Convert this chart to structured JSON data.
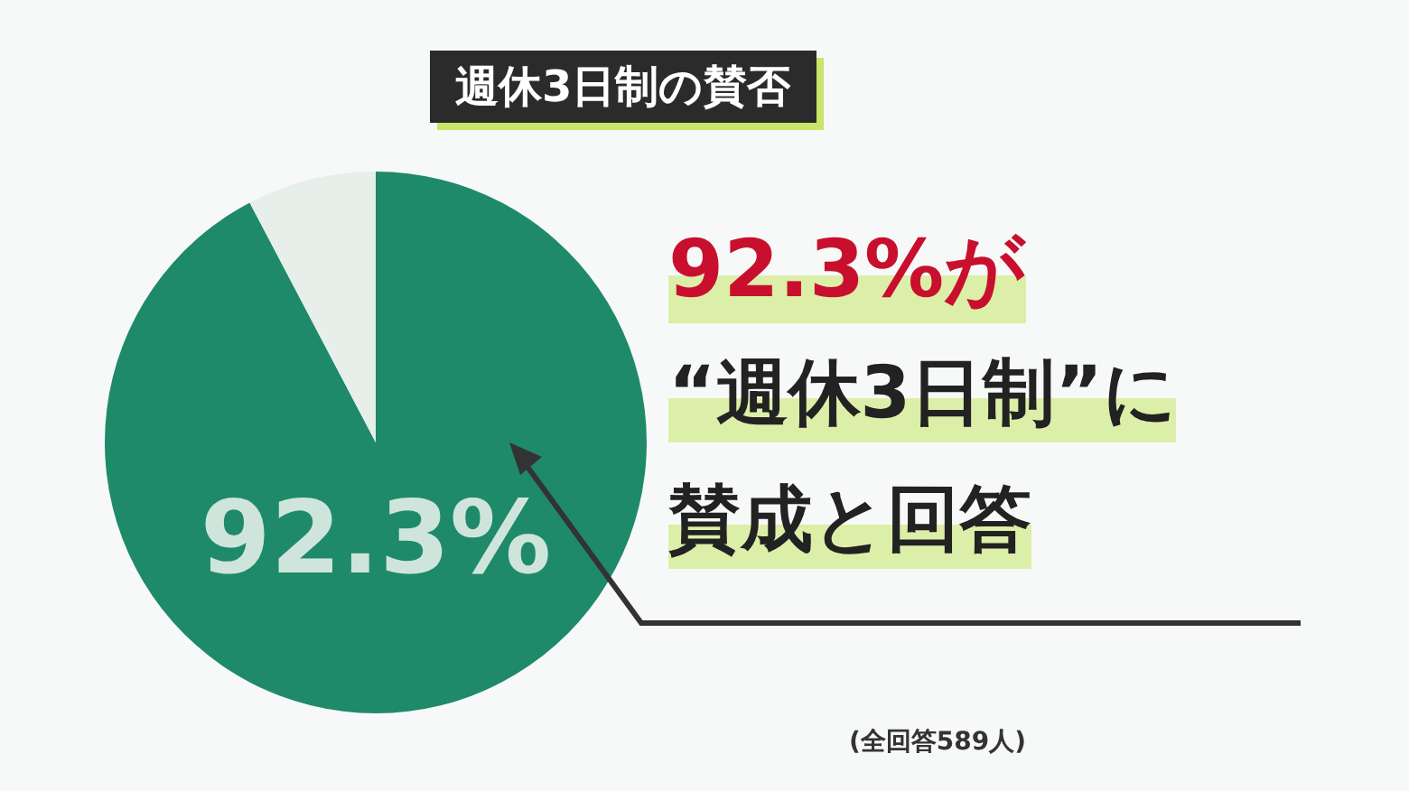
{
  "chart_data": {
    "type": "pie",
    "title": "週休3日制の賛否",
    "categories": [
      null,
      null
    ],
    "values": [
      92.3,
      7.7
    ],
    "colors": [
      "#1e8a6a",
      "#e6efe9"
    ],
    "value_labels": [
      "92.3%",
      null
    ],
    "annotations": [
      "92.3%が",
      "“週休3日制”に",
      "賛成と回答",
      "(全回答589人)"
    ]
  }
}
